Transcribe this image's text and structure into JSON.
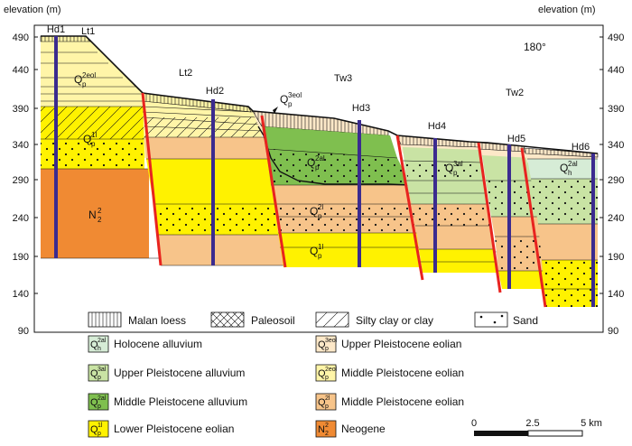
{
  "axis": {
    "left_title": "elevation (m)",
    "right_title": "elevation (m)",
    "ticks": [
      "490",
      "440",
      "390",
      "340",
      "290",
      "240",
      "190",
      "140",
      "90"
    ]
  },
  "orientation": "180°",
  "profile_labels": [
    "Lt1",
    "Lt2",
    "Tw3",
    "Tw2"
  ],
  "boreholes": [
    "Hd1",
    "Hd2",
    "Hd3",
    "Hd4",
    "Hd5",
    "Hd6"
  ],
  "unit_labels": {
    "q2eol": {
      "main": "Q",
      "sup": "2eol",
      "sub": "p"
    },
    "q1l": {
      "main": "Q",
      "sup": "1l",
      "sub": "p"
    },
    "n2": {
      "main": "N",
      "sup": "2",
      "sub": "2"
    },
    "q3eol": {
      "main": "Q",
      "sup": "3eol",
      "sub": "p"
    },
    "q2al": {
      "main": "Q",
      "sup": "2al",
      "sub": "p"
    },
    "q2l": {
      "main": "Q",
      "sup": "2l",
      "sub": "p"
    },
    "q1l_b": {
      "main": "Q",
      "sup": "1l",
      "sub": "p"
    },
    "q3al": {
      "main": "Q",
      "sup": "3al",
      "sub": "p"
    },
    "qh2al": {
      "main": "Q",
      "sup": "2al",
      "sub": "h"
    }
  },
  "pattern_legend": {
    "malan": "Malan loess",
    "paleosoil": "Paleosoil",
    "silty": "Silty clay or clay",
    "sand": "Sand"
  },
  "unit_legend": [
    {
      "main": "Q",
      "sup": "2al",
      "sub": "h",
      "label": "Holocene alluvium",
      "color": "#d6ecd6"
    },
    {
      "main": "Q",
      "sup": "3al",
      "sub": "p",
      "label": "Upper Pleistocene alluvium",
      "color": "#c9e3a4"
    },
    {
      "main": "Q",
      "sup": "2al",
      "sub": "p",
      "label": "Middle Pleistocene alluvium",
      "color": "#7fbf4f"
    },
    {
      "main": "Q",
      "sup": "1l",
      "sub": "p",
      "label": "Lower Pleistocene eolian",
      "color": "#fff200"
    },
    {
      "main": "Q",
      "sup": "3eol",
      "sub": "p",
      "label": "Upper Pleistocene eolian",
      "color": "#fde8c8"
    },
    {
      "main": "Q",
      "sup": "2eol",
      "sub": "p",
      "label": "Middle Pleistocene eolian",
      "color": "#fff5a8"
    },
    {
      "main": "Q",
      "sup": "2l",
      "sub": "p",
      "label": "Middle Pleistocene eolian",
      "color": "#f7c48a"
    },
    {
      "main": "N",
      "sup": "2",
      "sub": "2",
      "label": "Neogene",
      "color": "#f08a33"
    }
  ],
  "scale": {
    "ticks": [
      "0",
      "2.5",
      "5 km"
    ]
  }
}
